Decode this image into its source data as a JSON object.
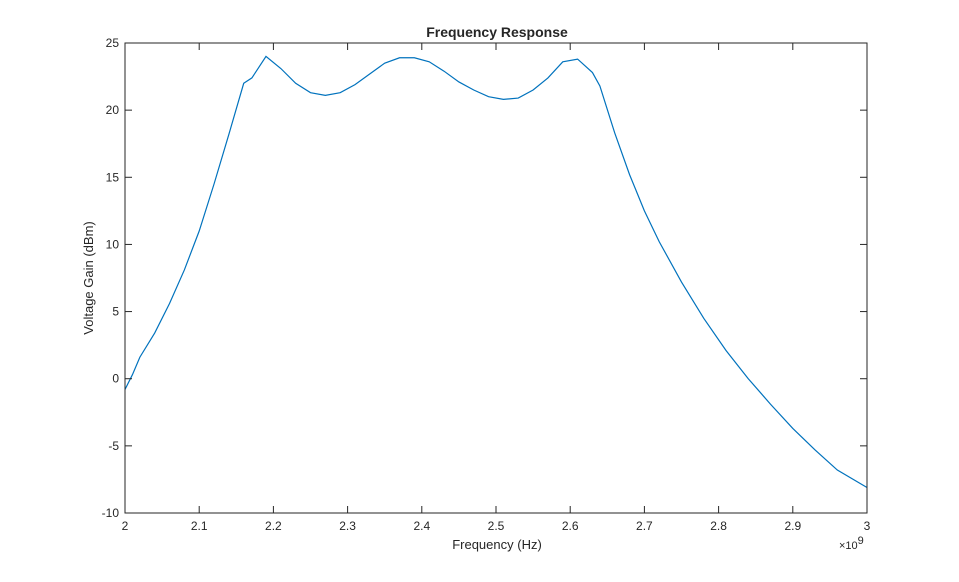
{
  "chart_data": {
    "type": "line",
    "title": "Frequency Response",
    "xlabel": "Frequency (Hz)",
    "ylabel": "Voltage Gain (dBm)",
    "x_exponent_label": "×10",
    "x_exponent_power": "9",
    "xlim": [
      2.0,
      3.0
    ],
    "ylim": [
      -10,
      25
    ],
    "x_scale_factor": 1000000000,
    "x_ticks": [
      2.0,
      2.1,
      2.2,
      2.3,
      2.4,
      2.5,
      2.6,
      2.7,
      2.8,
      2.9,
      3.0
    ],
    "x_tick_labels": [
      "2",
      "2.1",
      "2.2",
      "2.3",
      "2.4",
      "2.5",
      "2.6",
      "2.7",
      "2.8",
      "2.9",
      "3"
    ],
    "y_ticks": [
      -10,
      -5,
      0,
      5,
      10,
      15,
      20,
      25
    ],
    "y_tick_labels": [
      "-10",
      "-5",
      "0",
      "5",
      "10",
      "15",
      "20",
      "25"
    ],
    "grid": false,
    "line_color": "#0072BD",
    "series": [
      {
        "x": [
          2.0,
          2.01,
          2.02,
          2.04,
          2.06,
          2.08,
          2.1,
          2.12,
          2.14,
          2.16,
          2.171,
          2.19,
          2.21,
          2.23,
          2.25,
          2.27,
          2.29,
          2.31,
          2.33,
          2.35,
          2.37,
          2.39,
          2.41,
          2.43,
          2.45,
          2.47,
          2.49,
          2.51,
          2.53,
          2.55,
          2.57,
          2.59,
          2.61,
          2.63,
          2.64,
          2.66,
          2.68,
          2.7,
          2.72,
          2.75,
          2.78,
          2.81,
          2.84,
          2.87,
          2.9,
          2.93,
          2.96,
          3.0
        ],
        "y": [
          -0.8,
          0.3,
          1.6,
          3.4,
          5.6,
          8.1,
          11.0,
          14.5,
          18.2,
          22.0,
          22.4,
          24.0,
          23.1,
          22.0,
          21.3,
          21.1,
          21.3,
          21.9,
          22.7,
          23.5,
          23.9,
          23.9,
          23.6,
          22.9,
          22.1,
          21.5,
          21.0,
          20.8,
          20.9,
          21.5,
          22.4,
          23.6,
          23.8,
          22.8,
          21.8,
          18.3,
          15.2,
          12.5,
          10.2,
          7.2,
          4.5,
          2.1,
          0.0,
          -1.9,
          -3.7,
          -5.3,
          -6.8,
          -8.1
        ]
      }
    ]
  }
}
